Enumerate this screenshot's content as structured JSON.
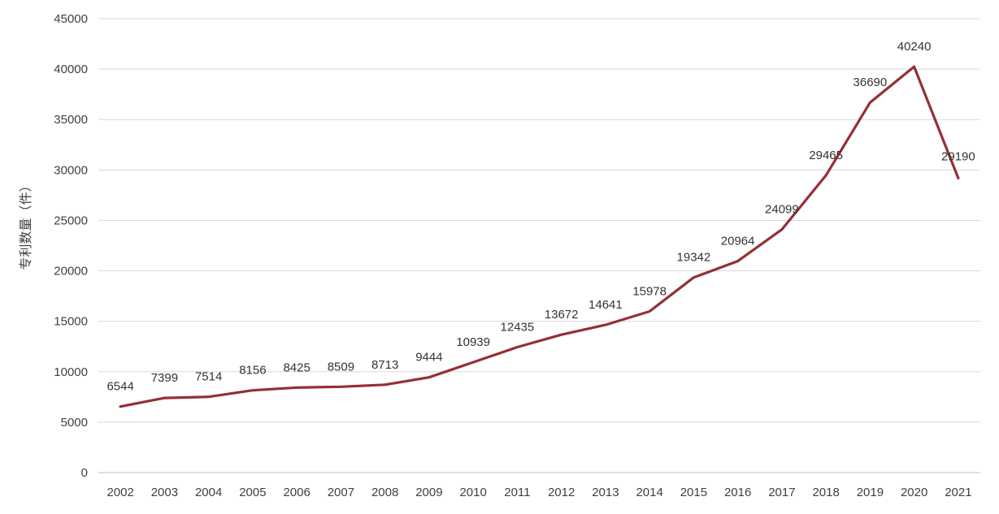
{
  "chart_data": {
    "type": "line",
    "title": "",
    "xlabel": "",
    "ylabel": "专利数量（件）",
    "categories": [
      "2002",
      "2003",
      "2004",
      "2005",
      "2006",
      "2007",
      "2008",
      "2009",
      "2010",
      "2011",
      "2012",
      "2013",
      "2014",
      "2015",
      "2016",
      "2017",
      "2018",
      "2019",
      "2020",
      "2021"
    ],
    "series": [
      {
        "values": [
          6544,
          7399,
          7514,
          8156,
          8425,
          8509,
          8713,
          9444,
          10939,
          12435,
          13672,
          14641,
          15978,
          19342,
          20964,
          24099,
          29465,
          36690,
          40240,
          29190
        ],
        "color": "#943034"
      }
    ],
    "ylim": [
      0,
      45000
    ],
    "yticks": [
      "0",
      "5000",
      "10000",
      "15000",
      "20000",
      "25000",
      "30000",
      "35000",
      "40000",
      "45000"
    ],
    "data_labels": [
      "6544",
      "7399",
      "7514",
      "8156",
      "8425",
      "8509",
      "8713",
      "9444",
      "10939",
      "12435",
      "13672",
      "14641",
      "15978",
      "19342",
      "20964",
      "24099",
      "29465",
      "36690",
      "40240",
      "29190"
    ],
    "grid": true,
    "legend": "none"
  }
}
